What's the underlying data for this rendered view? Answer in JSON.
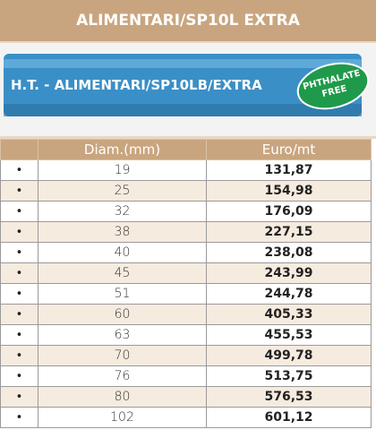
{
  "header": {
    "title": "ALIMENTARI/SP10L EXTRA"
  },
  "banner": {
    "text": "H.T. - ALIMENTARI/SP10LB/EXTRA",
    "badge": [
      "PHTHALATE",
      "FREE"
    ]
  },
  "table": {
    "columns": [
      "Diam.(mm)",
      "Euro/mt"
    ],
    "rows": [
      [
        "•",
        "19",
        "131,87"
      ],
      [
        "•",
        "25",
        "154,98"
      ],
      [
        "•",
        "32",
        "176,09"
      ],
      [
        "•",
        "38",
        "227,15"
      ],
      [
        "•",
        "40",
        "238,08"
      ],
      [
        "•",
        "45",
        "243,99"
      ],
      [
        "•",
        "51",
        "244,78"
      ],
      [
        "•",
        "60",
        "405,33"
      ],
      [
        "•",
        "63",
        "455,53"
      ],
      [
        "•",
        "70",
        "499,78"
      ],
      [
        "•",
        "76",
        "513,75"
      ],
      [
        "•",
        "80",
        "576,53"
      ],
      [
        "•",
        "102",
        "601,12"
      ]
    ]
  }
}
